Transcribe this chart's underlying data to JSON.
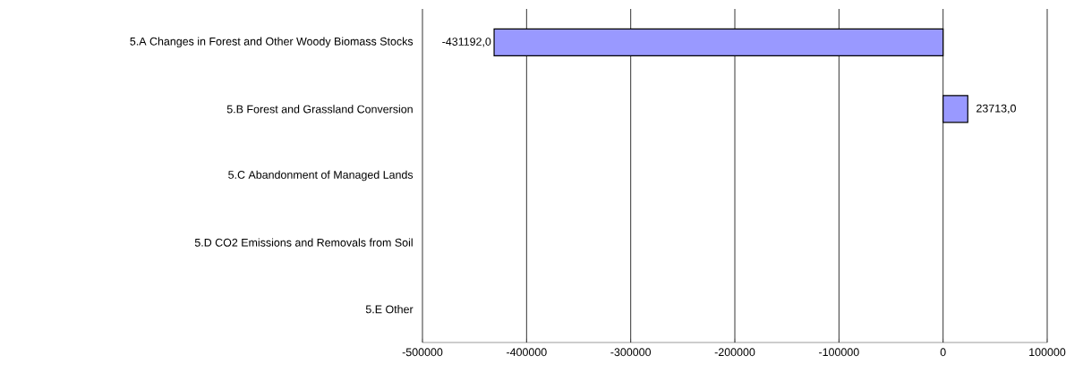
{
  "chart_data": {
    "type": "bar",
    "orientation": "horizontal",
    "categories": [
      "5.A Changes in Forest and Other Woody Biomass Stocks",
      "5.B Forest and Grassland Conversion",
      "5.C Abandonment of Managed Lands",
      "5.D CO2 Emissions and Removals from Soil",
      "5.E Other"
    ],
    "values": [
      -431192,
      23713,
      null,
      null,
      null
    ],
    "value_labels": [
      "-431192,0",
      "23713,0",
      null,
      null,
      null
    ],
    "color": "#9999ff",
    "xlim": [
      -500000,
      100000
    ],
    "xticks": [
      -500000,
      -400000,
      -300000,
      -200000,
      -100000,
      0,
      100000
    ],
    "grid": "x"
  }
}
